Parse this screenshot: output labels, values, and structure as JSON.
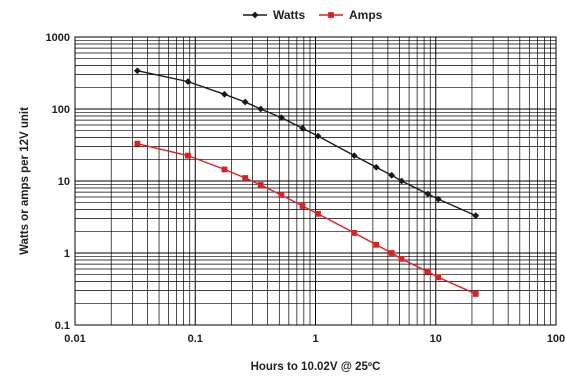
{
  "chart_data": {
    "type": "line",
    "title": "",
    "xlabel": "Hours to 10.02V @ 25ºC",
    "ylabel": "Watts or amps per 12V unit",
    "x_scale": "log",
    "y_scale": "log",
    "xlim": [
      0.01,
      100
    ],
    "ylim": [
      0.1,
      1000
    ],
    "grid": true,
    "legend_position": "top-center",
    "x_tick_labels": [
      "0.01",
      "0.1",
      "1",
      "10",
      "100"
    ],
    "y_tick_labels": [
      "0.1",
      "1",
      "10",
      "100",
      "1000"
    ],
    "series": [
      {
        "name": "Watts",
        "color": "#1a1a1a",
        "marker": "diamond",
        "points": [
          [
            0.033,
            340
          ],
          [
            0.087,
            240
          ],
          [
            0.175,
            160
          ],
          [
            0.26,
            125
          ],
          [
            0.35,
            100
          ],
          [
            0.52,
            76
          ],
          [
            0.78,
            54
          ],
          [
            1.05,
            42
          ],
          [
            2.1,
            22.5
          ],
          [
            3.2,
            15.5
          ],
          [
            4.3,
            12
          ],
          [
            5.2,
            10
          ],
          [
            8.6,
            6.6
          ],
          [
            10.5,
            5.6
          ],
          [
            21.5,
            3.3
          ]
        ]
      },
      {
        "name": "Amps",
        "color": "#e02020",
        "marker": "square",
        "points": [
          [
            0.033,
            33
          ],
          [
            0.087,
            22.5
          ],
          [
            0.175,
            14.5
          ],
          [
            0.26,
            11
          ],
          [
            0.35,
            8.8
          ],
          [
            0.52,
            6.4
          ],
          [
            0.78,
            4.5
          ],
          [
            1.05,
            3.5
          ],
          [
            2.1,
            1.9
          ],
          [
            3.2,
            1.3
          ],
          [
            4.3,
            1.0
          ],
          [
            5.2,
            0.83
          ],
          [
            8.6,
            0.55
          ],
          [
            10.5,
            0.46
          ],
          [
            21.5,
            0.27
          ]
        ]
      }
    ]
  }
}
